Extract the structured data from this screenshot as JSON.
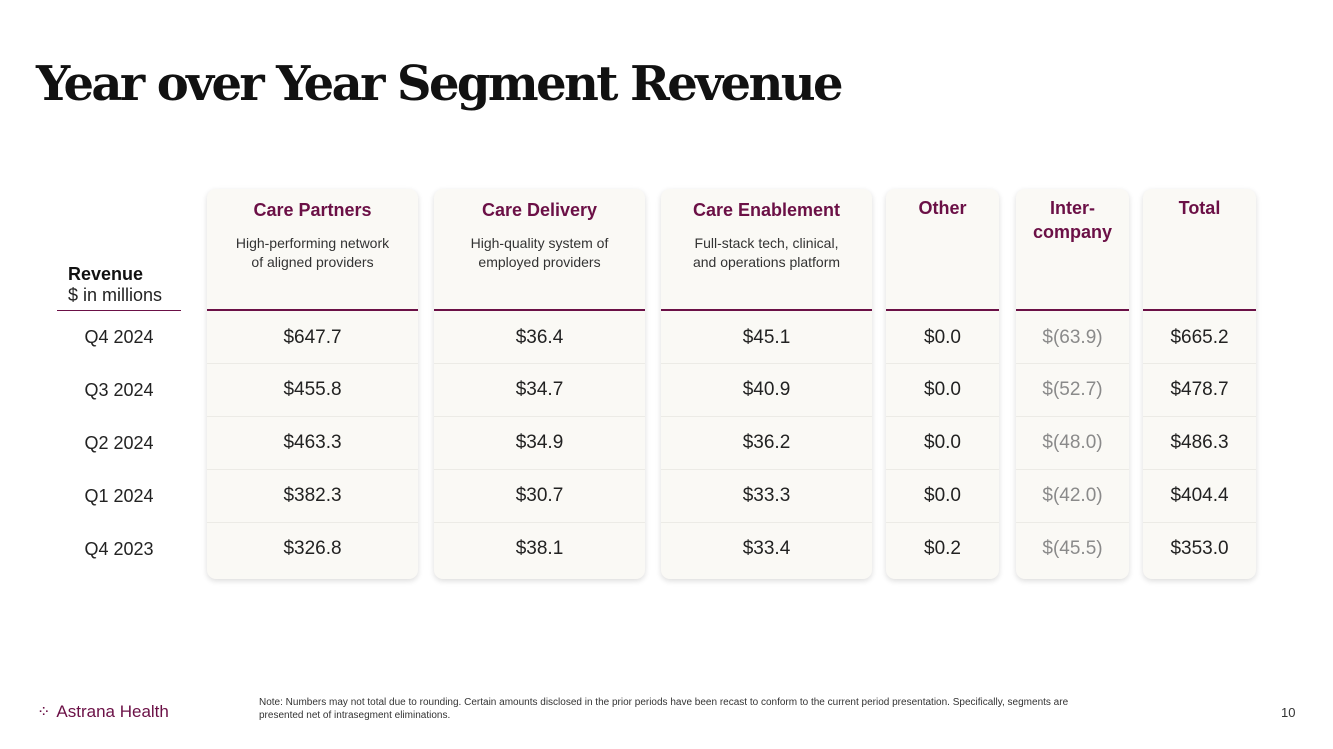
{
  "title": "Year over Year Segment Revenue",
  "revenue_label": "Revenue",
  "unit_label": "$ in millions",
  "periods": [
    "Q4 2024",
    "Q3 2024",
    "Q2 2024",
    "Q1 2024",
    "Q4 2023"
  ],
  "columns": [
    {
      "title": "Care Partners",
      "description_lines": [
        "High-performing network",
        "of aligned providers"
      ],
      "values": [
        "$647.7",
        "$455.8",
        "$463.3",
        "$382.3",
        "$326.8"
      ]
    },
    {
      "title": "Care Delivery",
      "description_lines": [
        "High-quality system of",
        "employed providers"
      ],
      "values": [
        "$36.4",
        "$34.7",
        "$34.9",
        "$30.7",
        "$38.1"
      ]
    },
    {
      "title": "Care Enablement",
      "description_lines": [
        "Full-stack tech, clinical,",
        "and operations platform"
      ],
      "values": [
        "$45.1",
        "$40.9",
        "$36.2",
        "$33.3",
        "$33.4"
      ]
    },
    {
      "title": "Other",
      "description_lines": [],
      "values": [
        "$0.0",
        "$0.0",
        "$0.0",
        "$0.0",
        "$0.2"
      ]
    },
    {
      "title_lines": [
        "Inter-",
        "company"
      ],
      "description_lines": [],
      "values": [
        "$(63.9)",
        "$(52.7)",
        "$(48.0)",
        "$(42.0)",
        "$(45.5)"
      ]
    },
    {
      "title": "Total",
      "description_lines": [],
      "values": [
        "$665.2",
        "$478.7",
        "$486.3",
        "$404.4",
        "$353.0"
      ]
    }
  ],
  "footer": {
    "logo_mark": "⁘",
    "logo_text": "Astrana Health",
    "note_lines": [
      "Note: Numbers may not total due to rounding. Certain amounts disclosed in the prior periods have been recast to conform to the current period presentation. Specifically, segments are",
      "presented net of intrasegment eliminations."
    ],
    "page_number": "10"
  },
  "colors": {
    "accent": "#6b1046",
    "card_bg": "#faf9f5",
    "muted_value": "#8a8a8a"
  }
}
